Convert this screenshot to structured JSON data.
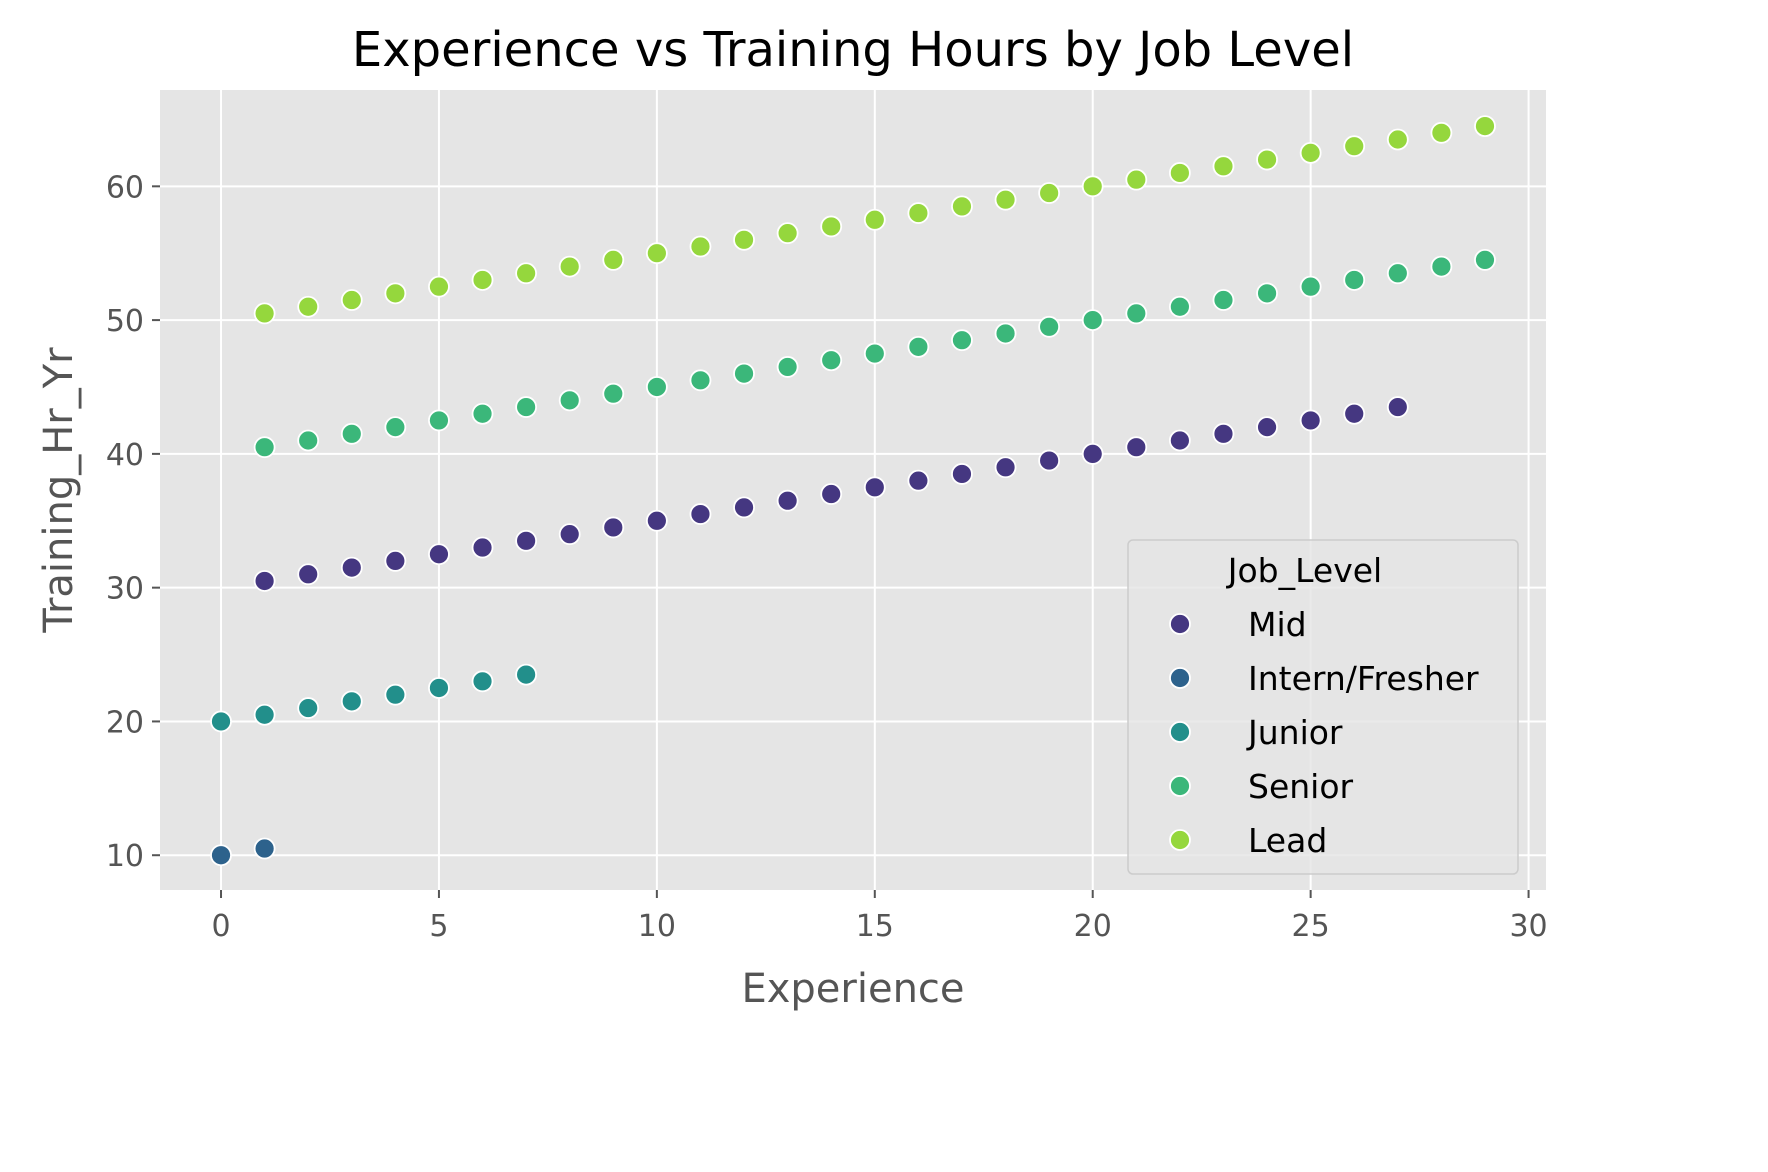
{
  "chart_data": {
    "type": "scatter",
    "title": "Experience vs Training Hours by Job Level",
    "xlabel": "Experience",
    "ylabel": "Training_Hr_Yr",
    "xlim": [
      -1.4,
      30.4
    ],
    "ylim": [
      7.4,
      67.2
    ],
    "xticks": [
      "0",
      "5",
      "10",
      "15",
      "20",
      "25",
      "30"
    ],
    "yticks": [
      "10",
      "20",
      "30",
      "40",
      "50",
      "60"
    ],
    "grid": true,
    "legend": {
      "title": "Job_Level",
      "position": "lower-right"
    },
    "series": [
      {
        "name": "Mid",
        "color": "#453781",
        "x": [
          1,
          2,
          3,
          4,
          5,
          6,
          7,
          8,
          9,
          10,
          11,
          12,
          13,
          14,
          15,
          16,
          17,
          18,
          19,
          20,
          21,
          22,
          23,
          24,
          25,
          26,
          27
        ],
        "y": [
          30.5,
          31,
          31.5,
          32,
          32.5,
          33,
          33.5,
          34,
          34.5,
          35,
          35.5,
          36,
          36.5,
          37,
          37.5,
          38,
          38.5,
          39,
          39.5,
          40,
          40.5,
          41,
          41.5,
          42,
          42.5,
          43,
          43.5
        ]
      },
      {
        "name": "Intern/Fresher",
        "color": "#2d628c",
        "x": [
          0,
          1
        ],
        "y": [
          10,
          10.5
        ]
      },
      {
        "name": "Junior",
        "color": "#228f8b",
        "x": [
          0,
          1,
          2,
          3,
          4,
          5,
          6,
          7
        ],
        "y": [
          20,
          20.5,
          21,
          21.5,
          22,
          22.5,
          23,
          23.5
        ]
      },
      {
        "name": "Senior",
        "color": "#3bb77a",
        "x": [
          1,
          2,
          3,
          4,
          5,
          6,
          7,
          8,
          9,
          10,
          11,
          12,
          13,
          14,
          15,
          16,
          17,
          18,
          19,
          20,
          21,
          22,
          23,
          24,
          25,
          26,
          27,
          28,
          29
        ],
        "y": [
          40.5,
          41,
          41.5,
          42,
          42.5,
          43,
          43.5,
          44,
          44.5,
          45,
          45.5,
          46,
          46.5,
          47,
          47.5,
          48,
          48.5,
          49,
          49.5,
          50,
          50.5,
          51,
          51.5,
          52,
          52.5,
          53,
          53.5,
          54,
          54.5
        ]
      },
      {
        "name": "Lead",
        "color": "#95d73d",
        "x": [
          1,
          2,
          3,
          4,
          5,
          6,
          7,
          8,
          9,
          10,
          11,
          12,
          13,
          14,
          15,
          16,
          17,
          18,
          19,
          20,
          21,
          22,
          23,
          24,
          25,
          26,
          27,
          28,
          29
        ],
        "y": [
          50.5,
          51,
          51.5,
          52,
          52.5,
          53,
          53.5,
          54,
          54.5,
          55,
          55.5,
          56,
          56.5,
          57,
          57.5,
          58,
          58.5,
          59,
          59.5,
          60,
          60.5,
          61,
          61.5,
          62,
          62.5,
          63,
          63.5,
          64,
          64.5
        ]
      }
    ]
  }
}
